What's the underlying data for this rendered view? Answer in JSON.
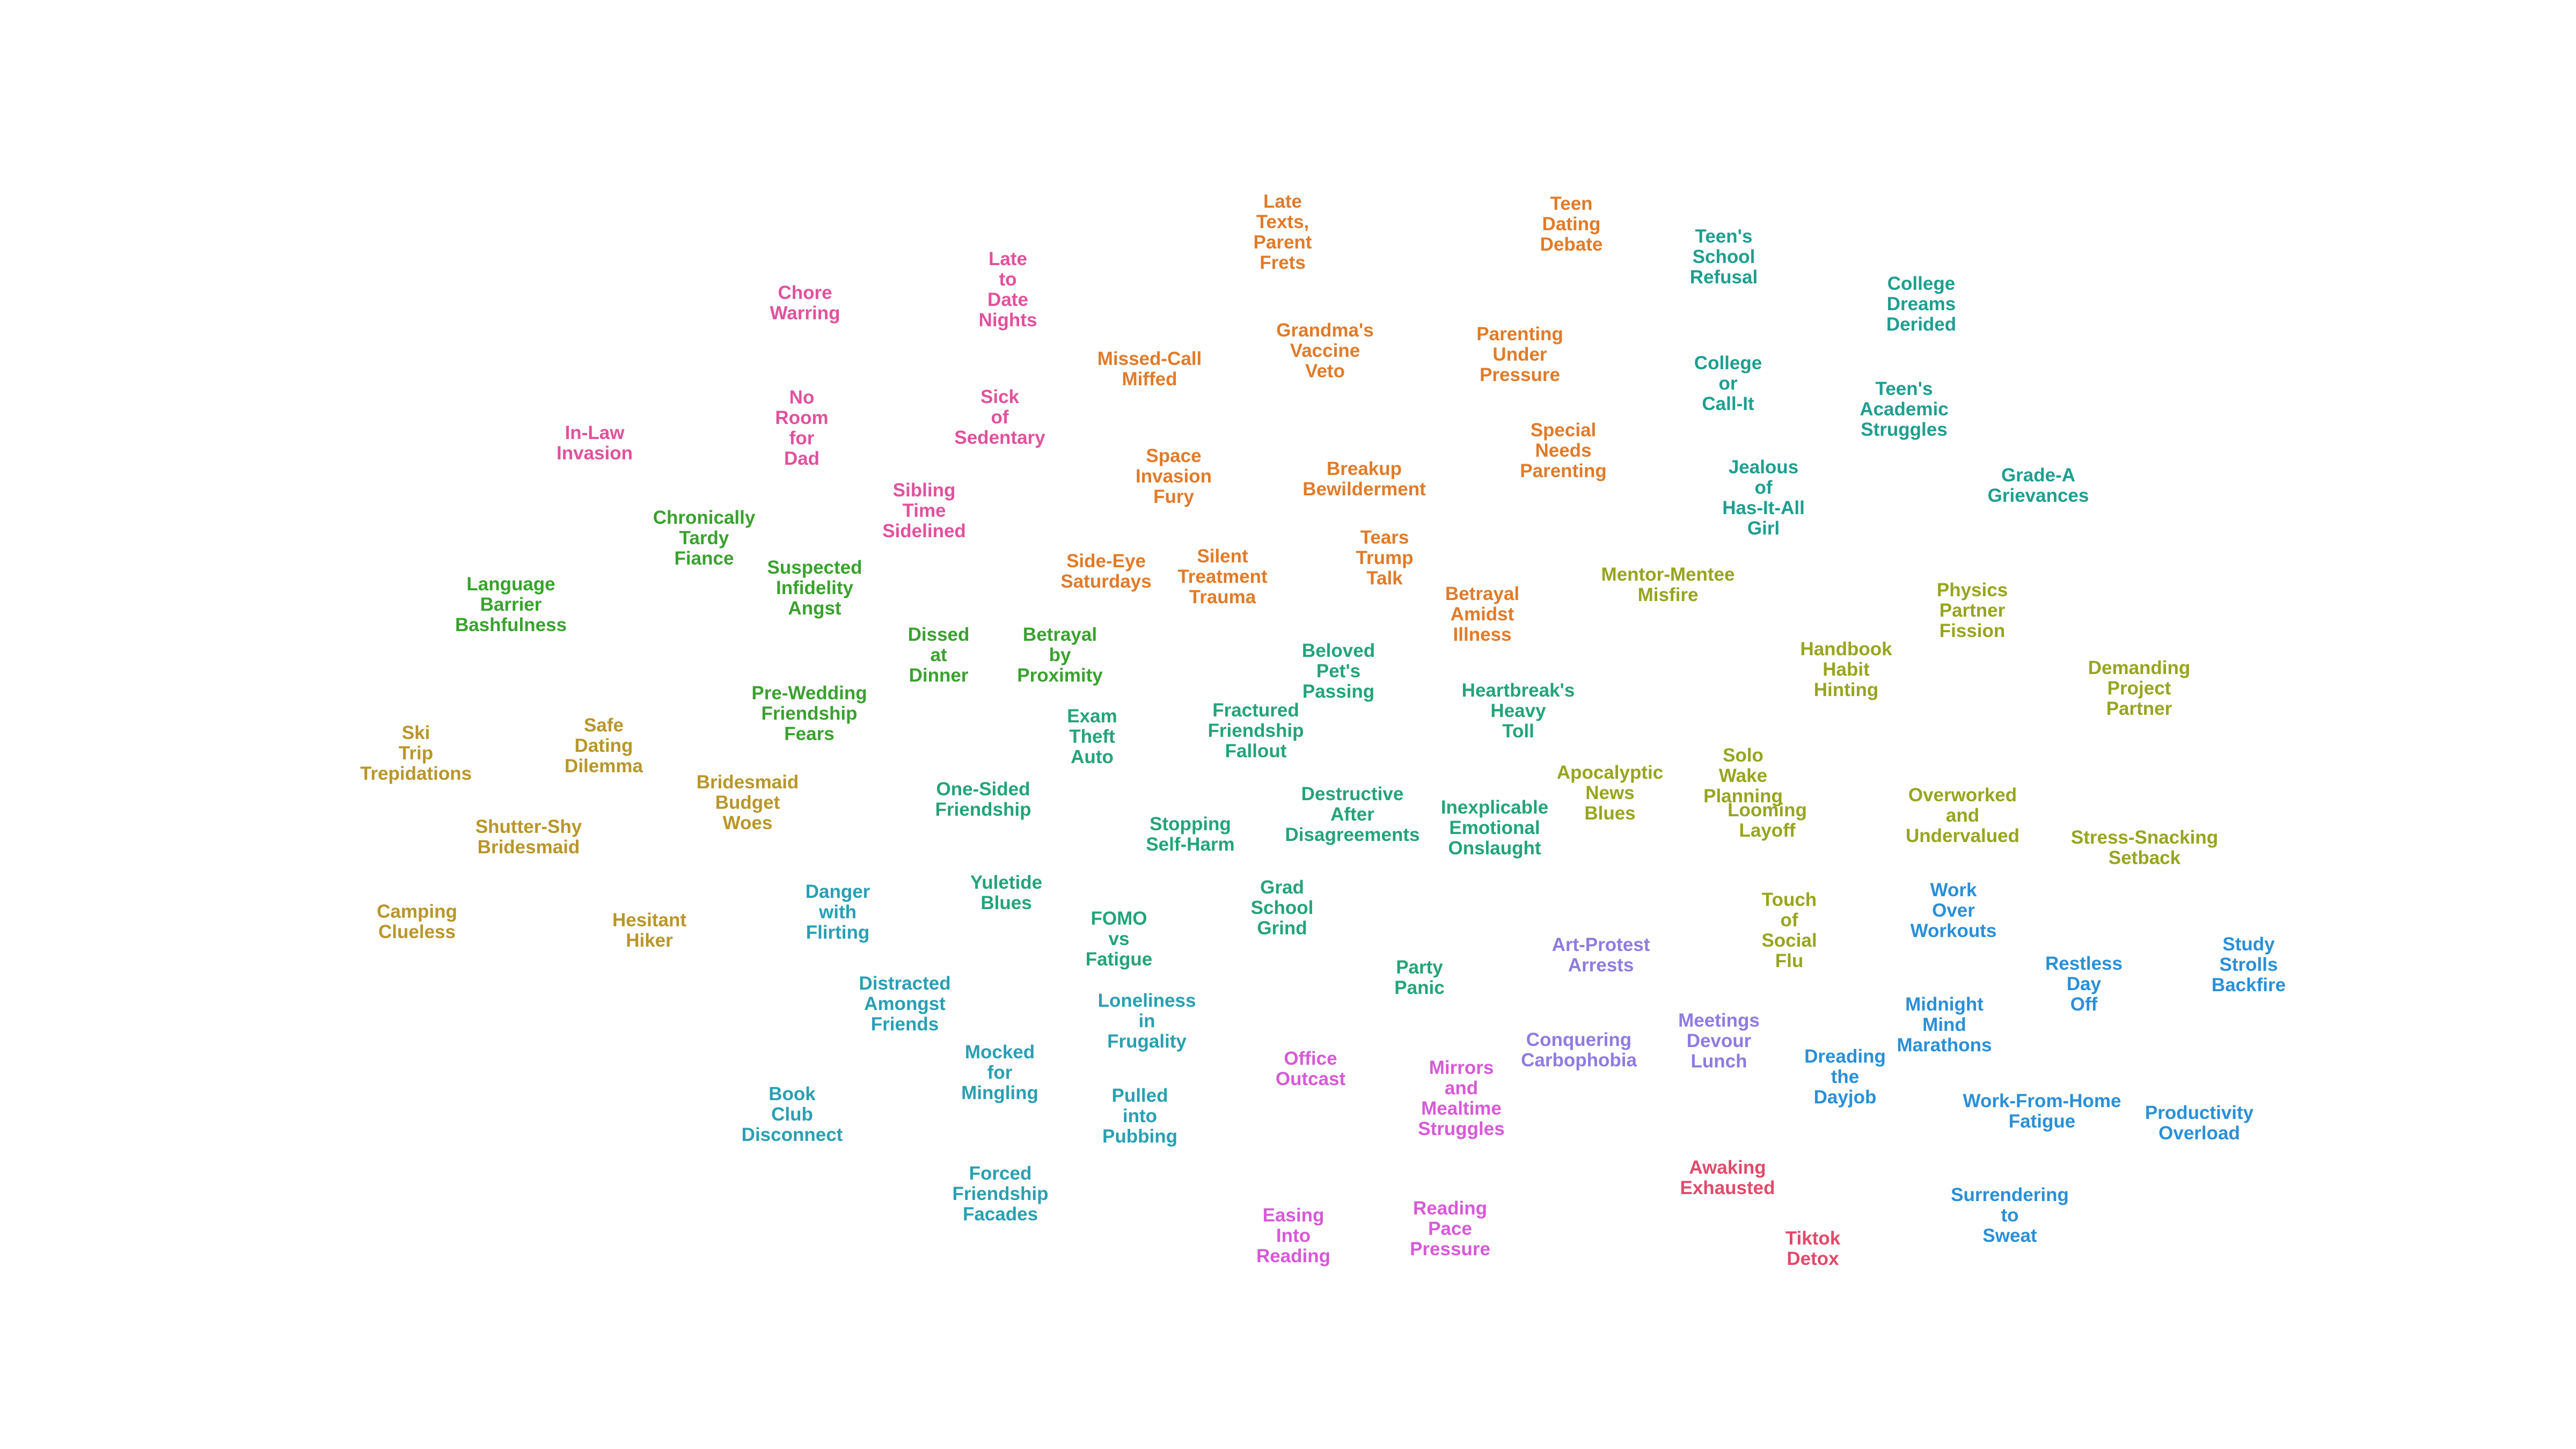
{
  "colors": {
    "pink": "#e0529c",
    "orange": "#e07b2a",
    "teal": "#1f9e8f",
    "green": "#3aa12f",
    "olive": "#97a51f",
    "gold": "#b8962a",
    "jade": "#24a37a",
    "cyan": "#2a9fb2",
    "blue": "#2b8fd6",
    "purple": "#8f7be0",
    "magenta": "#d65ad6",
    "rose": "#e04a6a"
  },
  "labels": [
    {
      "text": "Chore\nWarring",
      "color": "pink"
    },
    {
      "text": "Late\nto\nDate\nNights",
      "color": "pink"
    },
    {
      "text": "In-Law\nInvasion",
      "color": "pink"
    },
    {
      "text": "No\nRoom\nfor\nDad",
      "color": "pink"
    },
    {
      "text": "Sick\nof\nSedentary",
      "color": "pink"
    },
    {
      "text": "Sibling\nTime\nSidelined",
      "color": "pink"
    },
    {
      "text": "Late\nTexts,\nParent\nFrets",
      "color": "orange"
    },
    {
      "text": "Teen\nDating\nDebate",
      "color": "orange"
    },
    {
      "text": "Missed-Call\nMiffed",
      "color": "orange"
    },
    {
      "text": "Grandma's\nVaccine\nVeto",
      "color": "orange"
    },
    {
      "text": "Parenting\nUnder\nPressure",
      "color": "orange"
    },
    {
      "text": "Space\nInvasion\nFury",
      "color": "orange"
    },
    {
      "text": "Breakup\nBewilderment",
      "color": "orange"
    },
    {
      "text": "Special\nNeeds\nParenting",
      "color": "orange"
    },
    {
      "text": "Side-Eye\nSaturdays",
      "color": "orange"
    },
    {
      "text": "Silent\nTreatment\nTrauma",
      "color": "orange"
    },
    {
      "text": "Tears\nTrump\nTalk",
      "color": "orange"
    },
    {
      "text": "Betrayal\nAmidst\nIllness",
      "color": "orange"
    },
    {
      "text": "Teen's\nSchool\nRefusal",
      "color": "teal"
    },
    {
      "text": "College\nDreams\nDerided",
      "color": "teal"
    },
    {
      "text": "College\nor\nCall-It",
      "color": "teal"
    },
    {
      "text": "Teen's\nAcademic\nStruggles",
      "color": "teal"
    },
    {
      "text": "Jealous\nof\nHas-It-All\nGirl",
      "color": "teal"
    },
    {
      "text": "Grade-A\nGrievances",
      "color": "teal"
    },
    {
      "text": "Chronically\nTardy\nFiance",
      "color": "green"
    },
    {
      "text": "Language\nBarrier\nBashfulness",
      "color": "green"
    },
    {
      "text": "Suspected\nInfidelity\nAngst",
      "color": "green"
    },
    {
      "text": "Dissed\nat\nDinner",
      "color": "green"
    },
    {
      "text": "Betrayal\nby\nProximity",
      "color": "green"
    },
    {
      "text": "Pre-Wedding\nFriendship\nFears",
      "color": "green"
    },
    {
      "text": "Mentor-Mentee\nMisfire",
      "color": "olive"
    },
    {
      "text": "Physics\nPartner\nFission",
      "color": "olive"
    },
    {
      "text": "Handbook\nHabit\nHinting",
      "color": "olive"
    },
    {
      "text": "Demanding\nProject\nPartner",
      "color": "olive"
    },
    {
      "text": "Apocalyptic\nNews\nBlues",
      "color": "olive"
    },
    {
      "text": "Solo\nWake\nPlanning",
      "color": "olive"
    },
    {
      "text": "Looming\nLayoff",
      "color": "olive"
    },
    {
      "text": "Overworked\nand\nUndervalued",
      "color": "olive"
    },
    {
      "text": "Stress-Snacking\nSetback",
      "color": "olive"
    },
    {
      "text": "Touch\nof\nSocial\nFlu",
      "color": "olive"
    },
    {
      "text": "Ski\nTrip\nTrepidations",
      "color": "gold"
    },
    {
      "text": "Safe\nDating\nDilemma",
      "color": "gold"
    },
    {
      "text": "Bridesmaid\nBudget\nWoes",
      "color": "gold"
    },
    {
      "text": "Shutter-Shy\nBridesmaid",
      "color": "gold"
    },
    {
      "text": "Camping\nClueless",
      "color": "gold"
    },
    {
      "text": "Hesitant\nHiker",
      "color": "gold"
    },
    {
      "text": "Beloved\nPet's\nPassing",
      "color": "jade"
    },
    {
      "text": "Heartbreak's\nHeavy\nToll",
      "color": "jade"
    },
    {
      "text": "Exam\nTheft\nAuto",
      "color": "jade"
    },
    {
      "text": "Fractured\nFriendship\nFallout",
      "color": "jade"
    },
    {
      "text": "One-Sided\nFriendship",
      "color": "jade"
    },
    {
      "text": "Destructive\nAfter\nDisagreements",
      "color": "jade"
    },
    {
      "text": "Inexplicable\nEmotional\nOnslaught",
      "color": "jade"
    },
    {
      "text": "Stopping\nSelf-Harm",
      "color": "jade"
    },
    {
      "text": "Yuletide\nBlues",
      "color": "jade"
    },
    {
      "text": "Grad\nSchool\nGrind",
      "color": "jade"
    },
    {
      "text": "FOMO\nvs\nFatigue",
      "color": "jade"
    },
    {
      "text": "Party\nPanic",
      "color": "jade"
    },
    {
      "text": "Danger\nwith\nFlirting",
      "color": "cyan"
    },
    {
      "text": "Distracted\nAmongst\nFriends",
      "color": "cyan"
    },
    {
      "text": "Loneliness\nin\nFrugality",
      "color": "cyan"
    },
    {
      "text": "Mocked\nfor\nMingling",
      "color": "cyan"
    },
    {
      "text": "Book\nClub\nDisconnect",
      "color": "cyan"
    },
    {
      "text": "Pulled\ninto\nPubbing",
      "color": "cyan"
    },
    {
      "text": "Forced\nFriendship\nFacades",
      "color": "cyan"
    },
    {
      "text": "Work\nOver\nWorkouts",
      "color": "blue"
    },
    {
      "text": "Study\nStrolls\nBackfire",
      "color": "blue"
    },
    {
      "text": "Restless\nDay\nOff",
      "color": "blue"
    },
    {
      "text": "Midnight\nMind\nMarathons",
      "color": "blue"
    },
    {
      "text": "Dreading\nthe\nDayjob",
      "color": "blue"
    },
    {
      "text": "Work-From-Home\nFatigue",
      "color": "blue"
    },
    {
      "text": "Productivity\nOverload",
      "color": "blue"
    },
    {
      "text": "Surrendering\nto\nSweat",
      "color": "blue"
    },
    {
      "text": "Art-Protest\nArrests",
      "color": "purple"
    },
    {
      "text": "Conquering\nCarbophobia",
      "color": "purple"
    },
    {
      "text": "Meetings\nDevour\nLunch",
      "color": "purple"
    },
    {
      "text": "Office\nOutcast",
      "color": "magenta"
    },
    {
      "text": "Mirrors\nand\nMealtime\nStruggles",
      "color": "magenta"
    },
    {
      "text": "Easing\nInto\nReading",
      "color": "magenta"
    },
    {
      "text": "Reading\nPace\nPressure",
      "color": "magenta"
    },
    {
      "text": "Awaking\nExhausted",
      "color": "rose"
    },
    {
      "text": "Tiktok\nDetox",
      "color": "rose"
    }
  ]
}
